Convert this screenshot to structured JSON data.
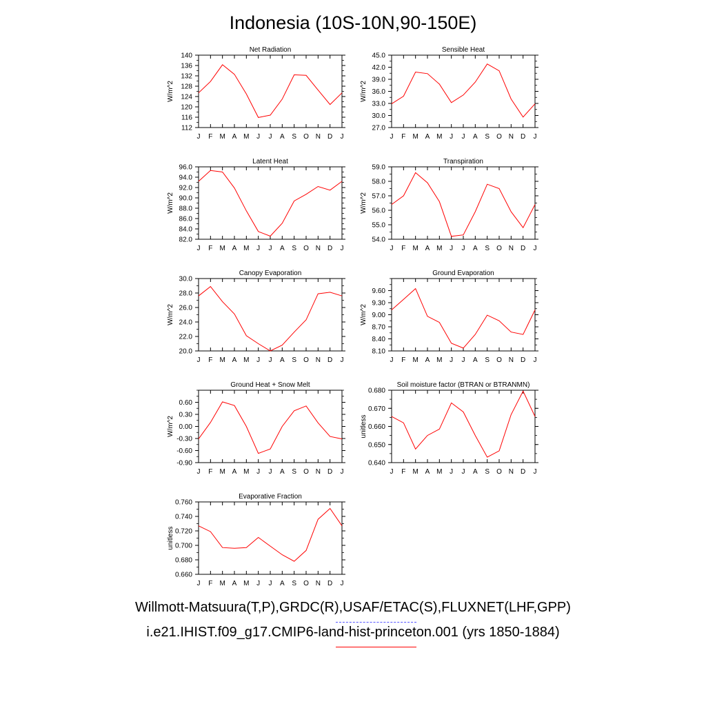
{
  "page": {
    "title": "Indonesia (10S-10N,90-150E)",
    "legend": {
      "obs_label": "Willmott-Matsuura(T,P),GRDC(R),USAF/ETAC(S),FLUXNET(LHF,GPP)",
      "obs_color": "#5555ff",
      "model_label": "i.e21.IHIST.f09_g17.CMIP6-land-hist-princeton.001 (yrs 1850-1884)",
      "model_color": "#ff0000"
    }
  },
  "chart_data": [
    {
      "type": "line",
      "title": "Net Radiation",
      "ylabel": "W/m^2",
      "categories": [
        "J",
        "F",
        "M",
        "A",
        "M",
        "J",
        "J",
        "A",
        "S",
        "O",
        "N",
        "D",
        "J"
      ],
      "ylim": [
        112,
        140
      ],
      "yticks": [
        "112",
        "116",
        "120",
        "124",
        "128",
        "132",
        "136",
        "140"
      ],
      "series": [
        {
          "values": [
            125.4,
            129.8,
            136.3,
            132.6,
            125.0,
            115.9,
            116.8,
            123.0,
            132.4,
            132.2,
            126.5,
            120.9,
            125.4
          ]
        }
      ]
    },
    {
      "type": "line",
      "title": "Sensible Heat",
      "ylabel": "W/m^2",
      "categories": [
        "J",
        "F",
        "M",
        "A",
        "M",
        "J",
        "J",
        "A",
        "S",
        "O",
        "N",
        "D",
        "J"
      ],
      "ylim": [
        27,
        45
      ],
      "yticks": [
        "27.0",
        "30.0",
        "33.0",
        "36.0",
        "39.0",
        "42.0",
        "45.0"
      ],
      "series": [
        {
          "values": [
            32.9,
            34.8,
            40.8,
            40.4,
            37.8,
            33.2,
            35.1,
            38.3,
            42.8,
            41.1,
            34.1,
            29.6,
            32.9
          ]
        }
      ]
    },
    {
      "type": "line",
      "title": "Latent Heat",
      "ylabel": "W/m^2",
      "categories": [
        "J",
        "F",
        "M",
        "A",
        "M",
        "J",
        "J",
        "A",
        "S",
        "O",
        "N",
        "D",
        "J"
      ],
      "ylim": [
        82,
        96
      ],
      "yticks": [
        "82.0",
        "84.0",
        "86.0",
        "88.0",
        "90.0",
        "92.0",
        "94.0",
        "96.0"
      ],
      "series": [
        {
          "values": [
            93.2,
            95.3,
            95.0,
            91.9,
            87.5,
            83.5,
            82.6,
            85.1,
            89.4,
            90.7,
            92.2,
            91.5,
            93.2
          ]
        }
      ]
    },
    {
      "type": "line",
      "title": "Transpiration",
      "ylabel": "W/m^2",
      "categories": [
        "J",
        "F",
        "M",
        "A",
        "M",
        "J",
        "J",
        "A",
        "S",
        "O",
        "N",
        "D",
        "J"
      ],
      "ylim": [
        54,
        59
      ],
      "yticks": [
        "54.0",
        "55.0",
        "56.0",
        "57.0",
        "58.0",
        "59.0"
      ],
      "series": [
        {
          "values": [
            56.4,
            57.0,
            58.6,
            57.9,
            56.6,
            54.2,
            54.3,
            55.9,
            57.8,
            57.5,
            55.9,
            54.8,
            56.4
          ]
        }
      ]
    },
    {
      "type": "line",
      "title": "Canopy Evaporation",
      "ylabel": "W/m^2",
      "categories": [
        "J",
        "F",
        "M",
        "A",
        "M",
        "J",
        "J",
        "A",
        "S",
        "O",
        "N",
        "D",
        "J"
      ],
      "ylim": [
        20,
        30
      ],
      "yticks": [
        "20.0",
        "22.0",
        "24.0",
        "26.0",
        "28.0",
        "30.0"
      ],
      "series": [
        {
          "values": [
            27.6,
            28.9,
            26.8,
            25.1,
            22.1,
            21.0,
            20.0,
            20.8,
            22.6,
            24.3,
            27.9,
            28.1,
            27.6
          ]
        }
      ]
    },
    {
      "type": "line",
      "title": "Ground Evaporation",
      "ylabel": "W/m^2",
      "categories": [
        "J",
        "F",
        "M",
        "A",
        "M",
        "J",
        "J",
        "A",
        "S",
        "O",
        "N",
        "D",
        "J"
      ],
      "ylim": [
        8.1,
        9.9
      ],
      "yticks": [
        "8.10",
        "8.40",
        "8.70",
        "9.00",
        "9.30",
        "9.60"
      ],
      "series": [
        {
          "values": [
            9.12,
            9.38,
            9.65,
            8.96,
            8.81,
            8.29,
            8.17,
            8.51,
            8.99,
            8.85,
            8.57,
            8.51,
            9.12
          ]
        }
      ]
    },
    {
      "type": "line",
      "title": "Ground Heat + Snow Melt",
      "ylabel": "W/m^2",
      "categories": [
        "J",
        "F",
        "M",
        "A",
        "M",
        "J",
        "J",
        "A",
        "S",
        "O",
        "N",
        "D",
        "J"
      ],
      "ylim": [
        -0.9,
        0.9
      ],
      "yticks": [
        "-0.90",
        "-0.60",
        "-0.30",
        "0.00",
        "0.30",
        "0.60"
      ],
      "series": [
        {
          "values": [
            -0.31,
            0.1,
            0.61,
            0.52,
            0.0,
            -0.67,
            -0.56,
            0.0,
            0.39,
            0.51,
            0.09,
            -0.25,
            -0.31
          ]
        }
      ]
    },
    {
      "type": "line",
      "title": "Soil moisture factor (BTRAN or BTRANMN)",
      "ylabel": "unitless",
      "categories": [
        "J",
        "F",
        "M",
        "A",
        "M",
        "J",
        "J",
        "A",
        "S",
        "O",
        "N",
        "D",
        "J"
      ],
      "ylim": [
        0.64,
        0.68
      ],
      "yticks": [
        "0.640",
        "0.650",
        "0.660",
        "0.670",
        "0.680"
      ],
      "series": [
        {
          "values": [
            0.6655,
            0.662,
            0.6475,
            0.655,
            0.6585,
            0.673,
            0.668,
            0.655,
            0.643,
            0.6465,
            0.6665,
            0.6795,
            0.6655
          ]
        }
      ]
    },
    {
      "type": "line",
      "title": "Evaporative Fraction",
      "ylabel": "unitless",
      "categories": [
        "J",
        "F",
        "M",
        "A",
        "M",
        "J",
        "J",
        "A",
        "S",
        "O",
        "N",
        "D",
        "J"
      ],
      "ylim": [
        0.66,
        0.76
      ],
      "yticks": [
        "0.660",
        "0.680",
        "0.700",
        "0.720",
        "0.740",
        "0.760"
      ],
      "series": [
        {
          "values": [
            0.727,
            0.719,
            0.697,
            0.696,
            0.697,
            0.711,
            0.699,
            0.687,
            0.678,
            0.693,
            0.736,
            0.751,
            0.727
          ]
        }
      ]
    }
  ]
}
